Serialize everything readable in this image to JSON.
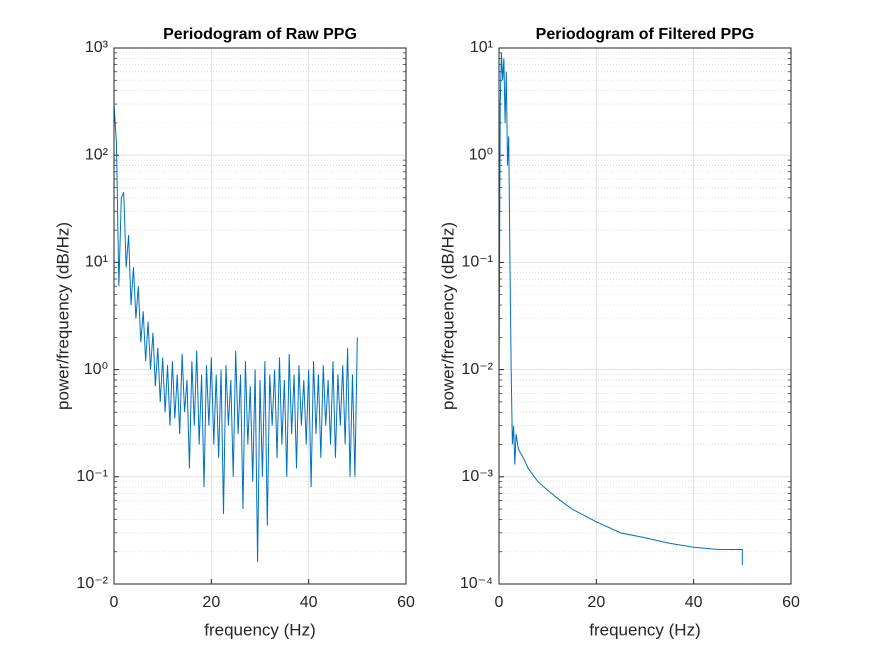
{
  "chart_data": [
    {
      "type": "line",
      "title": "Periodogram of Raw PPG",
      "xlabel": "frequency (Hz)",
      "ylabel": "power/frequency (dB/Hz)",
      "color": "#0072bd",
      "ylog": true,
      "grid": true,
      "minor_grid": true,
      "xlim": [
        0,
        60
      ],
      "xticks": [
        0,
        20,
        40,
        60
      ],
      "ylim": [
        0.01,
        1000
      ],
      "yticks": [
        {
          "value": 0.01,
          "label": "10⁻²"
        },
        {
          "value": 0.1,
          "label": "10⁻¹"
        },
        {
          "value": 1,
          "label": "10⁰"
        },
        {
          "value": 10,
          "label": "10¹"
        },
        {
          "value": 100,
          "label": "10²"
        },
        {
          "value": 1000,
          "label": "10³"
        }
      ],
      "x": [
        0,
        0.5,
        1,
        1.5,
        2,
        2.5,
        3,
        3.5,
        4,
        4.5,
        5,
        5.5,
        6,
        6.5,
        7,
        7.5,
        8,
        8.5,
        9,
        9.5,
        10,
        10.5,
        11,
        11.5,
        12,
        12.5,
        13,
        13.5,
        14,
        14.5,
        15,
        15.5,
        16,
        16.5,
        17,
        17.5,
        18,
        18.5,
        19,
        19.5,
        20,
        20.5,
        21,
        21.5,
        22,
        22.5,
        23,
        23.5,
        24,
        24.5,
        25,
        25.5,
        26,
        26.5,
        27,
        27.5,
        28,
        28.5,
        29,
        29.5,
        30,
        30.5,
        31,
        31.5,
        32,
        32.5,
        33,
        33.5,
        34,
        34.5,
        35,
        35.5,
        36,
        36.5,
        37,
        37.5,
        38,
        38.5,
        39,
        39.5,
        40,
        40.5,
        41,
        41.5,
        42,
        42.5,
        43,
        43.5,
        44,
        44.5,
        45,
        45.5,
        46,
        46.5,
        47,
        47.5,
        48,
        48.5,
        49,
        49.5,
        50
      ],
      "values": [
        300,
        130,
        6,
        40,
        45,
        9,
        18,
        4,
        9,
        3,
        6,
        1.8,
        3.5,
        1.2,
        2.8,
        1,
        2.2,
        0.7,
        1.6,
        0.5,
        1.3,
        0.4,
        1.1,
        0.3,
        1.2,
        0.35,
        0.9,
        0.25,
        1.4,
        0.4,
        0.8,
        0.12,
        1.2,
        0.3,
        1.5,
        0.2,
        0.9,
        0.08,
        1.1,
        0.3,
        1.3,
        0.2,
        0.9,
        0.15,
        1.0,
        0.045,
        1.1,
        0.3,
        0.8,
        0.1,
        1.5,
        0.25,
        0.9,
        0.05,
        1.2,
        0.2,
        0.7,
        0.09,
        1.0,
        0.016,
        0.8,
        0.1,
        1.2,
        0.035,
        0.9,
        0.3,
        1.0,
        0.15,
        1.3,
        0.2,
        0.8,
        0.1,
        1.4,
        0.25,
        0.9,
        0.12,
        1.1,
        0.3,
        0.8,
        0.2,
        1.0,
        0.08,
        1.2,
        0.25,
        0.9,
        0.15,
        1.1,
        0.3,
        0.8,
        0.2,
        1.2,
        0.15,
        0.9,
        0.3,
        1.1,
        0.2,
        1.6,
        0.1,
        0.9,
        0.1,
        2.0
      ]
    },
    {
      "type": "line",
      "title": "Periodogram of Filtered PPG",
      "xlabel": "frequency (Hz)",
      "ylabel": "power/frequency (dB/Hz)",
      "color": "#0072bd",
      "ylog": true,
      "grid": true,
      "minor_grid": true,
      "xlim": [
        0,
        60
      ],
      "xticks": [
        0,
        20,
        40,
        60
      ],
      "ylim": [
        0.0001,
        10
      ],
      "yticks": [
        {
          "value": 0.0001,
          "label": "10⁻⁴"
        },
        {
          "value": 0.001,
          "label": "10⁻³"
        },
        {
          "value": 0.01,
          "label": "10⁻²"
        },
        {
          "value": 0.1,
          "label": "10⁻¹"
        },
        {
          "value": 1,
          "label": "10⁰"
        },
        {
          "value": 10,
          "label": "10¹"
        }
      ],
      "x": [
        0,
        0.25,
        0.5,
        0.75,
        1,
        1.25,
        1.5,
        1.75,
        2,
        2.25,
        2.5,
        2.75,
        3,
        3.25,
        3.5,
        4,
        5,
        6,
        8,
        10,
        12,
        15,
        20,
        25,
        30,
        35,
        40,
        45,
        50,
        50
      ],
      "values": [
        0.008,
        3,
        9,
        5,
        8,
        2,
        6,
        0.8,
        1.5,
        0.1,
        0.01,
        0.002,
        0.003,
        0.0013,
        0.0025,
        0.0018,
        0.0015,
        0.0012,
        0.0009,
        0.00075,
        0.00063,
        0.0005,
        0.00038,
        0.0003,
        0.00027,
        0.00024,
        0.00022,
        0.00021,
        0.00021,
        0.00015
      ]
    }
  ]
}
